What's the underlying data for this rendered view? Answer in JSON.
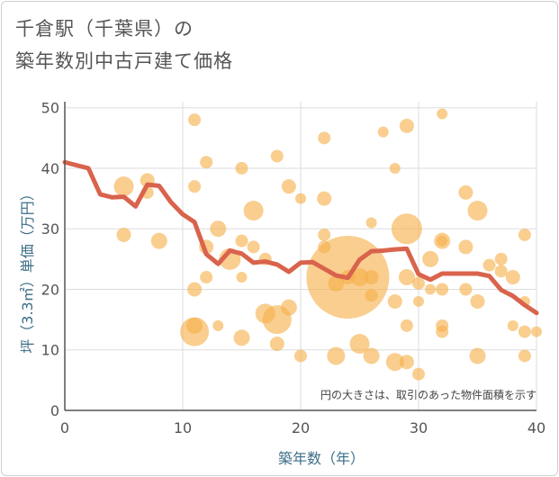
{
  "chart_data": {
    "type": "scatter",
    "title_line1": "千倉駅（千葉県）の",
    "title_line2": "築年数別中古戸建て価格",
    "xlabel": "築年数（年）",
    "ylabel": "坪（3.3㎡）単価（万円）",
    "xlim": [
      0,
      40
    ],
    "ylim": [
      0,
      51
    ],
    "xticks": [
      0,
      10,
      20,
      30,
      40
    ],
    "yticks": [
      0,
      10,
      20,
      30,
      40,
      50
    ],
    "grid": true,
    "note": "円の大きさは、取引のあった物件面積を示す",
    "colors": {
      "bubble": "#f5b04a",
      "line": "#d9634c",
      "grid": "#dddddd",
      "axis": "#555555"
    },
    "bubbles": [
      {
        "x": 5,
        "y": 37,
        "size": 11
      },
      {
        "x": 5,
        "y": 29,
        "size": 8
      },
      {
        "x": 7,
        "y": 38,
        "size": 8
      },
      {
        "x": 7,
        "y": 36,
        "size": 7
      },
      {
        "x": 8,
        "y": 28,
        "size": 9
      },
      {
        "x": 11,
        "y": 48,
        "size": 7
      },
      {
        "x": 11,
        "y": 37,
        "size": 7
      },
      {
        "x": 11,
        "y": 20,
        "size": 8
      },
      {
        "x": 11,
        "y": 14,
        "size": 9
      },
      {
        "x": 11,
        "y": 13,
        "size": 16
      },
      {
        "x": 12,
        "y": 41,
        "size": 7
      },
      {
        "x": 12,
        "y": 27,
        "size": 8
      },
      {
        "x": 12,
        "y": 22,
        "size": 7
      },
      {
        "x": 13,
        "y": 30,
        "size": 9
      },
      {
        "x": 13,
        "y": 14,
        "size": 6
      },
      {
        "x": 14,
        "y": 25,
        "size": 12
      },
      {
        "x": 15,
        "y": 40,
        "size": 7
      },
      {
        "x": 15,
        "y": 28,
        "size": 7
      },
      {
        "x": 15,
        "y": 22,
        "size": 6
      },
      {
        "x": 15,
        "y": 12,
        "size": 9
      },
      {
        "x": 16,
        "y": 33,
        "size": 11
      },
      {
        "x": 16,
        "y": 27,
        "size": 7
      },
      {
        "x": 17,
        "y": 25,
        "size": 7
      },
      {
        "x": 17,
        "y": 16,
        "size": 11
      },
      {
        "x": 18,
        "y": 42,
        "size": 7
      },
      {
        "x": 18,
        "y": 15,
        "size": 16
      },
      {
        "x": 18,
        "y": 11,
        "size": 8
      },
      {
        "x": 19,
        "y": 37,
        "size": 8
      },
      {
        "x": 19,
        "y": 17,
        "size": 9
      },
      {
        "x": 20,
        "y": 35,
        "size": 6
      },
      {
        "x": 20,
        "y": 9,
        "size": 7
      },
      {
        "x": 22,
        "y": 45,
        "size": 7
      },
      {
        "x": 22,
        "y": 35,
        "size": 8
      },
      {
        "x": 22,
        "y": 29,
        "size": 7
      },
      {
        "x": 22,
        "y": 27,
        "size": 7
      },
      {
        "x": 23,
        "y": 21,
        "size": 9
      },
      {
        "x": 23,
        "y": 9,
        "size": 10
      },
      {
        "x": 24,
        "y": 22,
        "size": 46
      },
      {
        "x": 24,
        "y": 22,
        "size": 8
      },
      {
        "x": 25,
        "y": 22,
        "size": 10
      },
      {
        "x": 25,
        "y": 11,
        "size": 11
      },
      {
        "x": 26,
        "y": 31,
        "size": 6
      },
      {
        "x": 26,
        "y": 22,
        "size": 8
      },
      {
        "x": 26,
        "y": 19,
        "size": 7
      },
      {
        "x": 26,
        "y": 9,
        "size": 9
      },
      {
        "x": 27,
        "y": 46,
        "size": 6
      },
      {
        "x": 28,
        "y": 40,
        "size": 6
      },
      {
        "x": 28,
        "y": 18,
        "size": 8
      },
      {
        "x": 28,
        "y": 8,
        "size": 10
      },
      {
        "x": 29,
        "y": 47,
        "size": 8
      },
      {
        "x": 29,
        "y": 30,
        "size": 17
      },
      {
        "x": 29,
        "y": 22,
        "size": 9
      },
      {
        "x": 29,
        "y": 14,
        "size": 7
      },
      {
        "x": 29,
        "y": 8,
        "size": 8
      },
      {
        "x": 30,
        "y": 21,
        "size": 7
      },
      {
        "x": 30,
        "y": 18,
        "size": 6
      },
      {
        "x": 30,
        "y": 6,
        "size": 7
      },
      {
        "x": 31,
        "y": 25,
        "size": 9
      },
      {
        "x": 31,
        "y": 20,
        "size": 6
      },
      {
        "x": 32,
        "y": 49,
        "size": 6
      },
      {
        "x": 32,
        "y": 28,
        "size": 9
      },
      {
        "x": 32,
        "y": 28,
        "size": 6
      },
      {
        "x": 32,
        "y": 20,
        "size": 7
      },
      {
        "x": 32,
        "y": 14,
        "size": 7
      },
      {
        "x": 32,
        "y": 13,
        "size": 7
      },
      {
        "x": 34,
        "y": 36,
        "size": 8
      },
      {
        "x": 34,
        "y": 27,
        "size": 8
      },
      {
        "x": 34,
        "y": 20,
        "size": 7
      },
      {
        "x": 35,
        "y": 33,
        "size": 11
      },
      {
        "x": 35,
        "y": 18,
        "size": 8
      },
      {
        "x": 35,
        "y": 9,
        "size": 9
      },
      {
        "x": 36,
        "y": 24,
        "size": 7
      },
      {
        "x": 37,
        "y": 25,
        "size": 7
      },
      {
        "x": 37,
        "y": 23,
        "size": 7
      },
      {
        "x": 38,
        "y": 22,
        "size": 8
      },
      {
        "x": 38,
        "y": 14,
        "size": 6
      },
      {
        "x": 39,
        "y": 29,
        "size": 7
      },
      {
        "x": 39,
        "y": 18,
        "size": 6
      },
      {
        "x": 39,
        "y": 13,
        "size": 7
      },
      {
        "x": 39,
        "y": 9,
        "size": 7
      },
      {
        "x": 40,
        "y": 13,
        "size": 6
      }
    ],
    "trend": {
      "x": [
        0,
        1,
        2,
        3,
        4,
        5,
        6,
        7,
        8,
        9,
        10,
        11,
        12,
        13,
        14,
        15,
        16,
        17,
        18,
        19,
        20,
        21,
        22,
        23,
        24,
        25,
        26,
        27,
        28,
        29,
        30,
        31,
        32,
        33,
        34,
        35,
        36,
        37,
        38,
        39,
        40
      ],
      "y": [
        41,
        40.5,
        40,
        35.7,
        35.2,
        35.3,
        33.7,
        37.3,
        37.1,
        34.4,
        32.4,
        31.1,
        25.8,
        24.2,
        26.4,
        25.9,
        24.4,
        24.6,
        24.1,
        22.9,
        24.4,
        24.5,
        23.4,
        22.3,
        21.9,
        24.9,
        26.3,
        26.4,
        26.6,
        26.7,
        22.5,
        21.6,
        22.6,
        22.6,
        22.6,
        22.6,
        22.2,
        19.9,
        18.9,
        17.4,
        16.1
      ]
    }
  }
}
